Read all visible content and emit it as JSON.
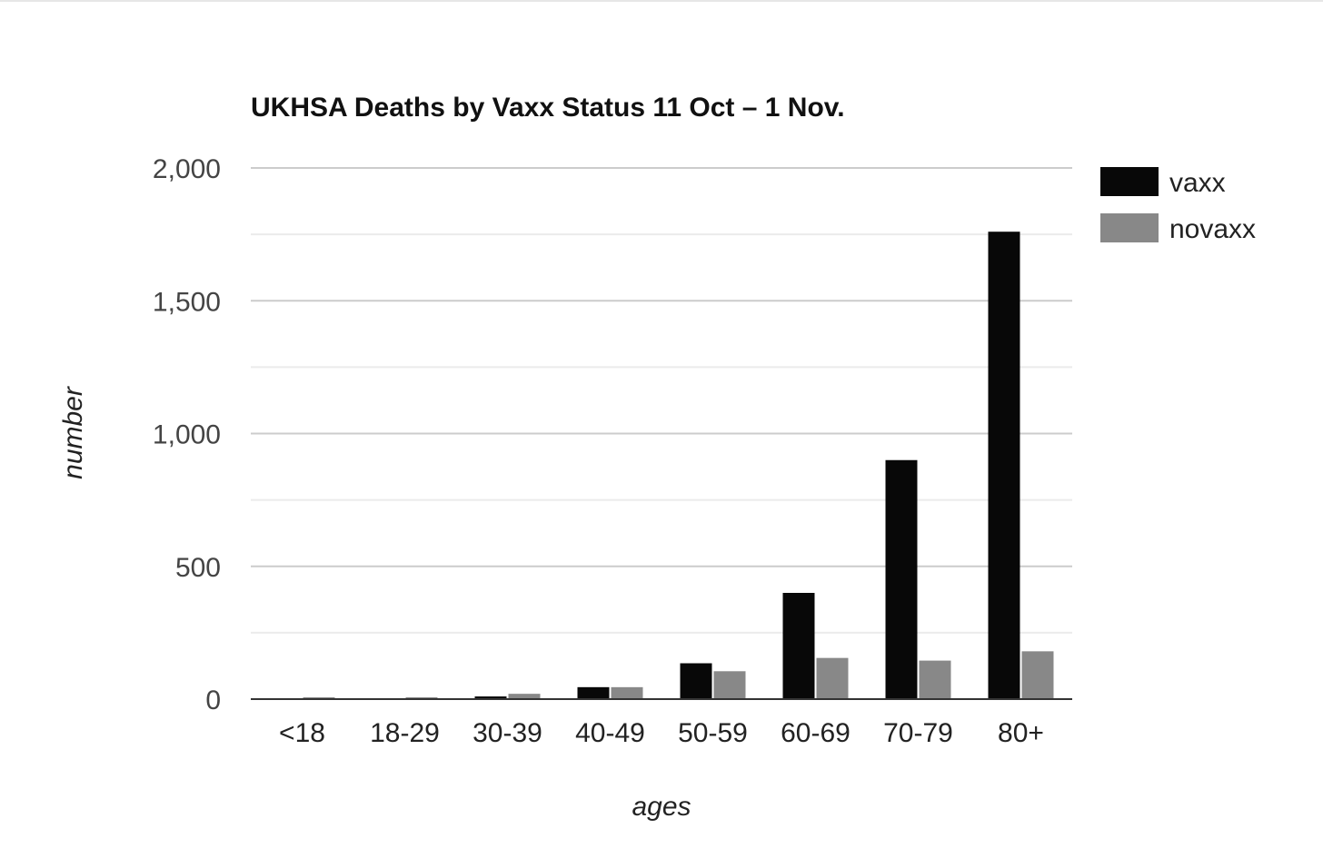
{
  "chart_data": {
    "type": "bar",
    "title": "UKHSA Deaths by Vaxx Status 11 Oct – 1 Nov.",
    "xlabel": "ages",
    "ylabel": "number",
    "categories": [
      "<18",
      "18-29",
      "30-39",
      "40-49",
      "50-59",
      "60-69",
      "70-79",
      "80+"
    ],
    "series": [
      {
        "name": "vaxx",
        "color": "#080808",
        "values": [
          0,
          0,
          10,
          45,
          135,
          400,
          900,
          1760
        ]
      },
      {
        "name": "novaxx",
        "color": "#888888",
        "values": [
          3,
          3,
          20,
          45,
          105,
          155,
          145,
          180
        ]
      }
    ],
    "ylim": [
      0,
      2000
    ],
    "yticks": [
      0,
      500,
      1000,
      1500,
      2000
    ],
    "ytick_labels": [
      "0",
      "500",
      "1,000",
      "1,500",
      "2,000"
    ],
    "grid": true,
    "legend_position": "right"
  }
}
